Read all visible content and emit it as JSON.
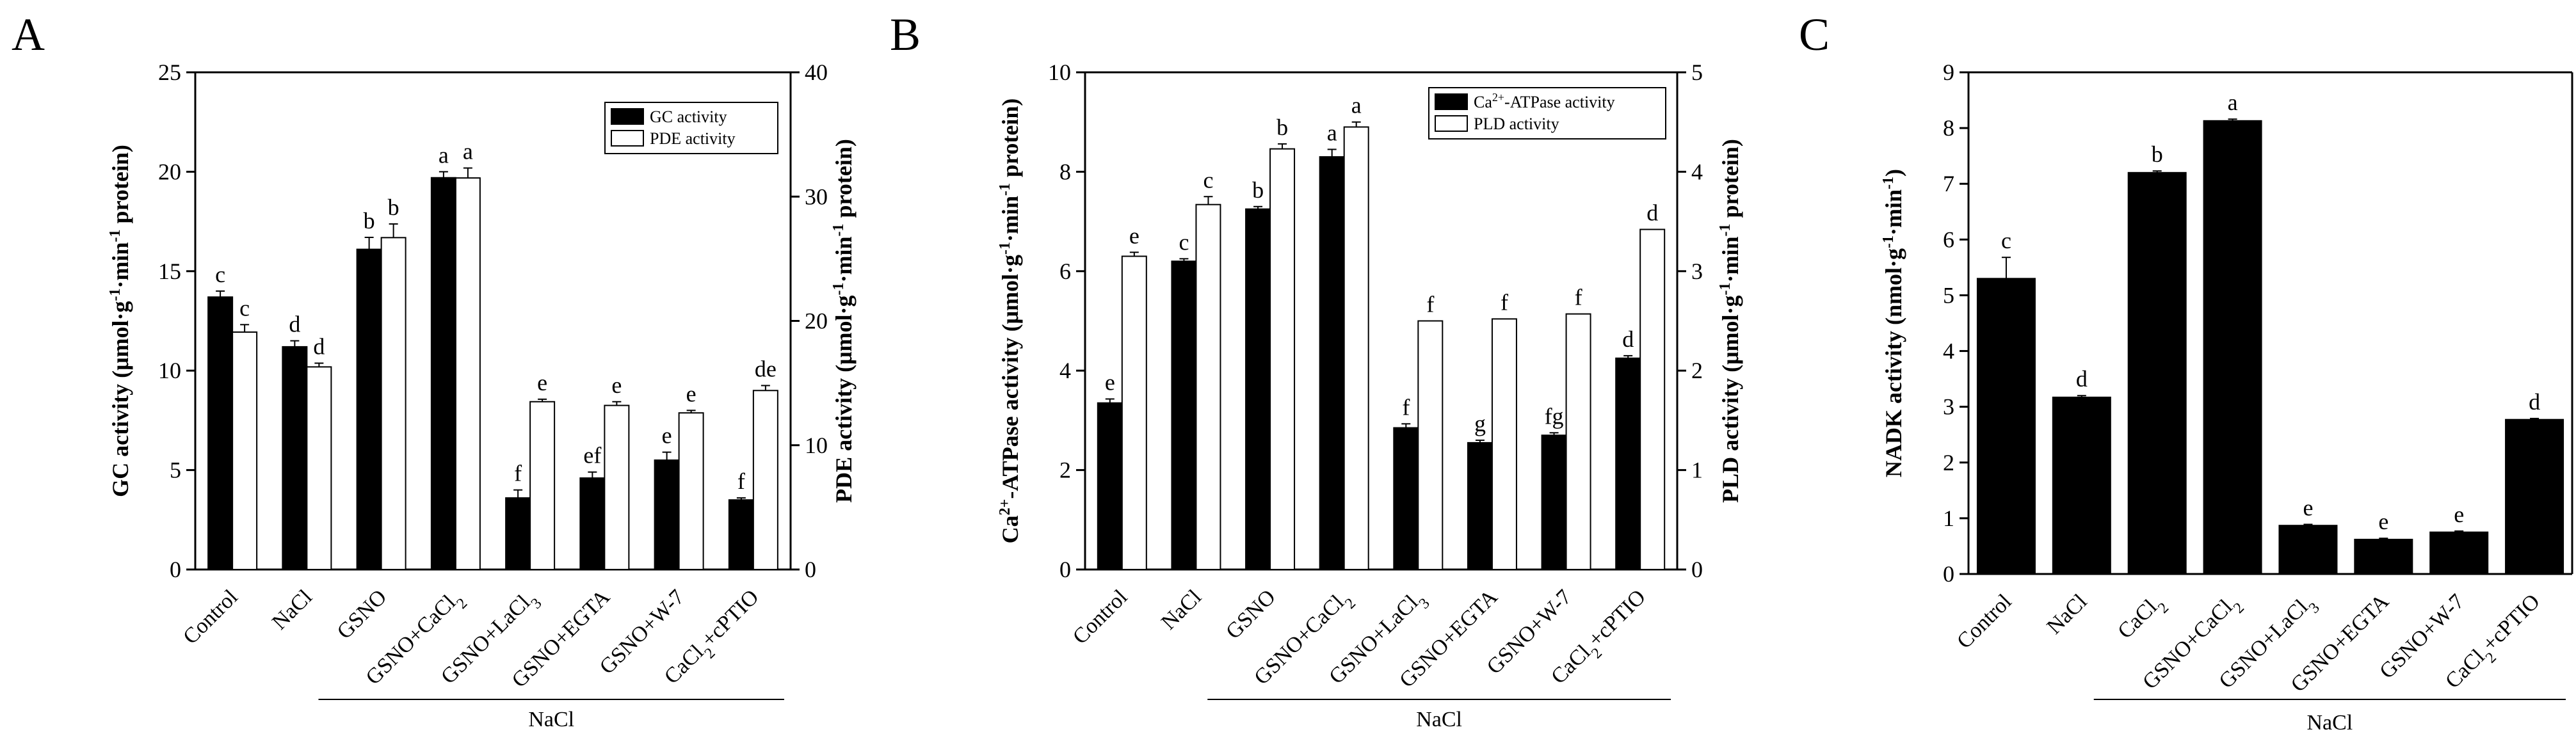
{
  "colors": {
    "primary": "#000000",
    "secondary": "#ffffff",
    "axis": "#000000"
  },
  "group_label": "NaCl",
  "chart_data": [
    {
      "panel": "A",
      "type": "bar",
      "categories": [
        "Control",
        "NaCl",
        "GSNO",
        "GSNO+CaCl2",
        "GSNO+LaCl3",
        "GSNO+EGTA",
        "GSNO+W-7",
        "CaCl2+cPTIO"
      ],
      "category_labels": [
        {
          "base": "Control",
          "sub": "",
          "tail": ""
        },
        {
          "base": "NaCl",
          "sub": "",
          "tail": ""
        },
        {
          "base": "GSNO",
          "sub": "",
          "tail": ""
        },
        {
          "base": "GSNO+CaCl",
          "sub": "2",
          "tail": ""
        },
        {
          "base": "GSNO+LaCl",
          "sub": "3",
          "tail": ""
        },
        {
          "base": "GSNO+EGTA",
          "sub": "",
          "tail": ""
        },
        {
          "base": "GSNO+W-7",
          "sub": "",
          "tail": ""
        },
        {
          "base": "CaCl",
          "sub": "2",
          "tail": "+cPTIO"
        }
      ],
      "series": [
        {
          "name": "GC activity",
          "axis": "left",
          "fill": "black",
          "values": [
            13.7,
            11.2,
            16.1,
            19.7,
            3.6,
            4.6,
            5.5,
            3.5
          ],
          "errors": [
            0.3,
            0.3,
            0.6,
            0.3,
            0.4,
            0.3,
            0.4,
            0.1
          ],
          "letters": [
            "c",
            "d",
            "b",
            "a",
            "f",
            "ef",
            "e",
            "f"
          ]
        },
        {
          "name": "PDE activity",
          "axis": "right",
          "fill": "white",
          "values": [
            19.1,
            16.3,
            26.7,
            31.5,
            13.5,
            13.2,
            12.6,
            14.4
          ],
          "errors": [
            0.6,
            0.3,
            1.1,
            0.8,
            0.2,
            0.3,
            0.2,
            0.4
          ],
          "letters": [
            "c",
            "d",
            "b",
            "a",
            "e",
            "e",
            "e",
            "de"
          ]
        }
      ],
      "left_axis": {
        "title_main": "GC activity (μmol·g",
        "ylim": [
          0,
          25
        ],
        "ticks": [
          "0",
          "5",
          "10",
          "15",
          "20",
          "25"
        ]
      },
      "right_axis": {
        "title_main": "PDE activity (μmol·g",
        "ylim": [
          0,
          40
        ],
        "ticks": [
          "0",
          "10",
          "20",
          "30",
          "40"
        ]
      },
      "legend": [
        "GC activity",
        "PDE activity"
      ],
      "group_span": [
        2,
        7
      ]
    },
    {
      "panel": "B",
      "type": "bar",
      "categories": [
        "Control",
        "NaCl",
        "GSNO",
        "GSNO+CaCl2",
        "GSNO+LaCl3",
        "GSNO+EGTA",
        "GSNO+W-7",
        "CaCl2+cPTIO"
      ],
      "category_labels": [
        {
          "base": "Control",
          "sub": "",
          "tail": ""
        },
        {
          "base": "NaCl",
          "sub": "",
          "tail": ""
        },
        {
          "base": "GSNO",
          "sub": "",
          "tail": ""
        },
        {
          "base": "GSNO+CaCl",
          "sub": "2",
          "tail": ""
        },
        {
          "base": "GSNO+LaCl",
          "sub": "3",
          "tail": ""
        },
        {
          "base": "GSNO+EGTA",
          "sub": "",
          "tail": ""
        },
        {
          "base": "GSNO+W-7",
          "sub": "",
          "tail": ""
        },
        {
          "base": "CaCl",
          "sub": "2",
          "tail": "+cPTIO"
        }
      ],
      "series": [
        {
          "name": "Ca2+-ATPase activity",
          "axis": "left",
          "fill": "black",
          "values": [
            3.35,
            6.2,
            7.25,
            8.3,
            2.85,
            2.55,
            2.7,
            4.25
          ],
          "errors": [
            0.08,
            0.05,
            0.05,
            0.15,
            0.08,
            0.05,
            0.05,
            0.05
          ],
          "letters": [
            "e",
            "c",
            "b",
            "a",
            "f",
            "g",
            "fg",
            "d"
          ]
        },
        {
          "name": "PLD activity",
          "axis": "right",
          "fill": "white",
          "values": [
            3.15,
            3.67,
            4.23,
            4.45,
            2.5,
            2.52,
            2.57,
            3.42
          ],
          "errors": [
            0.04,
            0.08,
            0.05,
            0.05,
            0.0,
            0.0,
            0.0,
            0.0
          ],
          "letters": [
            "e",
            "c",
            "b",
            "a",
            "f",
            "f",
            "f",
            "d"
          ]
        }
      ],
      "left_axis": {
        "title_pre": "Ca",
        "title_sup": "2+",
        "title_main": "-ATPase activity (μmol·g",
        "ylim": [
          0,
          10
        ],
        "ticks": [
          "0",
          "2",
          "4",
          "6",
          "8",
          "10"
        ]
      },
      "right_axis": {
        "title_main": "PLD activity (μmol·g",
        "ylim": [
          0,
          5
        ],
        "ticks": [
          "0",
          "1",
          "2",
          "3",
          "4",
          "5"
        ]
      },
      "legend": [
        {
          "base": "Ca",
          "sup": "2+",
          "tail": "-ATPase activity"
        },
        {
          "base": "PLD activity",
          "sup": "",
          "tail": ""
        }
      ],
      "group_span": [
        2,
        7
      ]
    },
    {
      "panel": "C",
      "type": "bar",
      "categories": [
        "Control",
        "NaCl",
        "CaCl2",
        "GSNO+CaCl2",
        "GSNO+LaCl3",
        "GSNO+EGTA",
        "GSNO+W-7",
        "CaCl2+cPTIO"
      ],
      "category_labels": [
        {
          "base": "Control",
          "sub": "",
          "tail": ""
        },
        {
          "base": "NaCl",
          "sub": "",
          "tail": ""
        },
        {
          "base": "CaCl",
          "sub": "2",
          "tail": ""
        },
        {
          "base": "GSNO+CaCl",
          "sub": "2",
          "tail": ""
        },
        {
          "base": "GSNO+LaCl",
          "sub": "3",
          "tail": ""
        },
        {
          "base": "GSNO+EGTA",
          "sub": "",
          "tail": ""
        },
        {
          "base": "GSNO+W-7",
          "sub": "",
          "tail": ""
        },
        {
          "base": "CaCl",
          "sub": "2",
          "tail": "+cPTIO"
        }
      ],
      "series": [
        {
          "name": "NADK activity",
          "axis": "left",
          "fill": "black",
          "values": [
            5.3,
            3.17,
            7.2,
            8.13,
            0.87,
            0.62,
            0.75,
            2.77
          ],
          "errors": [
            0.38,
            0.03,
            0.03,
            0.03,
            0.02,
            0.02,
            0.02,
            0.02
          ],
          "letters": [
            "c",
            "d",
            "b",
            "a",
            "e",
            "e",
            "e",
            "d"
          ]
        }
      ],
      "left_axis": {
        "title_main": "NADK activity (nmol·g",
        "ylim": [
          0,
          9
        ],
        "ticks": [
          "0",
          "1",
          "2",
          "3",
          "4",
          "5",
          "6",
          "7",
          "8",
          "9"
        ]
      },
      "group_span": [
        2,
        7
      ]
    }
  ]
}
